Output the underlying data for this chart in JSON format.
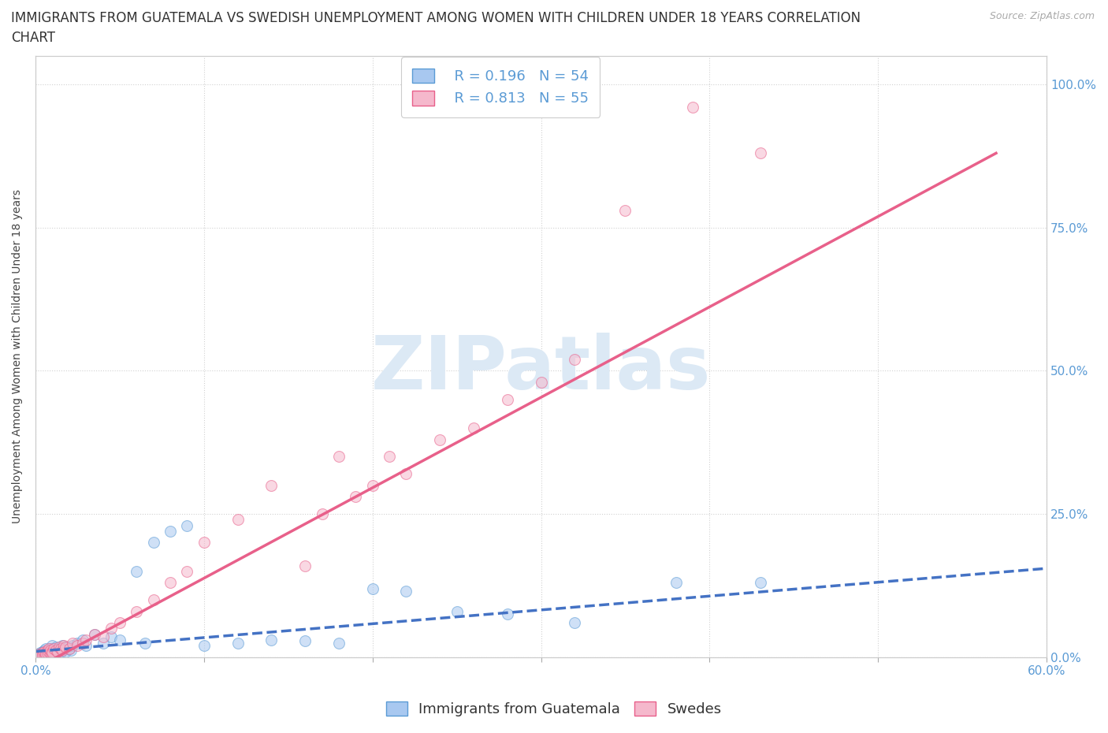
{
  "title_line1": "IMMIGRANTS FROM GUATEMALA VS SWEDISH UNEMPLOYMENT AMONG WOMEN WITH CHILDREN UNDER 18 YEARS CORRELATION",
  "title_line2": "CHART",
  "source": "Source: ZipAtlas.com",
  "ylabel": "Unemployment Among Women with Children Under 18 years",
  "xlim": [
    0.0,
    0.6
  ],
  "ylim": [
    0.0,
    1.05
  ],
  "xticks": [
    0.0,
    0.1,
    0.2,
    0.3,
    0.4,
    0.5,
    0.6
  ],
  "xticklabels": [
    "0.0%",
    "",
    "",
    "",
    "",
    "",
    "60.0%"
  ],
  "yticks": [
    0.0,
    0.25,
    0.5,
    0.75,
    1.0
  ],
  "yticklabels": [
    "0.0%",
    "25.0%",
    "50.0%",
    "75.0%",
    "100.0%"
  ],
  "blue_fill": "#a8c8f0",
  "blue_edge": "#5b9bd5",
  "pink_fill": "#f5b8cc",
  "pink_edge": "#e8608a",
  "blue_line_color": "#4472c4",
  "pink_line_color": "#e8608a",
  "watermark_text": "ZIPatlas",
  "watermark_color": "#dce9f5",
  "legend_R_blue": "R = 0.196",
  "legend_N_blue": "N = 54",
  "legend_R_pink": "R = 0.813",
  "legend_N_pink": "N = 55",
  "legend_label_blue": "Immigrants from Guatemala",
  "legend_label_pink": "Swedes",
  "blue_scatter_x": [
    0.002,
    0.003,
    0.004,
    0.004,
    0.005,
    0.005,
    0.006,
    0.006,
    0.007,
    0.007,
    0.008,
    0.008,
    0.009,
    0.009,
    0.01,
    0.01,
    0.011,
    0.012,
    0.012,
    0.013,
    0.014,
    0.015,
    0.015,
    0.016,
    0.017,
    0.018,
    0.019,
    0.02,
    0.021,
    0.022,
    0.025,
    0.028,
    0.03,
    0.035,
    0.04,
    0.045,
    0.05,
    0.06,
    0.065,
    0.07,
    0.08,
    0.09,
    0.1,
    0.12,
    0.14,
    0.16,
    0.18,
    0.2,
    0.22,
    0.25,
    0.28,
    0.32,
    0.38,
    0.43
  ],
  "blue_scatter_y": [
    0.005,
    0.008,
    0.01,
    0.003,
    0.007,
    0.012,
    0.005,
    0.015,
    0.008,
    0.01,
    0.012,
    0.006,
    0.009,
    0.015,
    0.01,
    0.02,
    0.008,
    0.012,
    0.018,
    0.01,
    0.015,
    0.012,
    0.008,
    0.02,
    0.015,
    0.01,
    0.018,
    0.015,
    0.012,
    0.02,
    0.025,
    0.03,
    0.02,
    0.04,
    0.025,
    0.035,
    0.03,
    0.15,
    0.025,
    0.2,
    0.22,
    0.23,
    0.02,
    0.025,
    0.03,
    0.028,
    0.025,
    0.12,
    0.115,
    0.08,
    0.075,
    0.06,
    0.13,
    0.13
  ],
  "pink_scatter_x": [
    0.002,
    0.003,
    0.004,
    0.004,
    0.005,
    0.005,
    0.006,
    0.006,
    0.007,
    0.007,
    0.008,
    0.008,
    0.009,
    0.009,
    0.01,
    0.01,
    0.011,
    0.012,
    0.013,
    0.014,
    0.015,
    0.016,
    0.017,
    0.018,
    0.02,
    0.022,
    0.025,
    0.028,
    0.03,
    0.035,
    0.04,
    0.045,
    0.05,
    0.06,
    0.07,
    0.08,
    0.09,
    0.1,
    0.12,
    0.14,
    0.16,
    0.17,
    0.18,
    0.19,
    0.2,
    0.21,
    0.22,
    0.24,
    0.26,
    0.28,
    0.3,
    0.32,
    0.35,
    0.39,
    0.43
  ],
  "pink_scatter_y": [
    0.005,
    0.002,
    0.008,
    0.004,
    0.006,
    0.01,
    0.008,
    0.005,
    0.012,
    0.008,
    0.01,
    0.015,
    0.008,
    0.012,
    0.01,
    0.008,
    0.015,
    0.012,
    0.01,
    0.018,
    0.015,
    0.012,
    0.02,
    0.018,
    0.015,
    0.025,
    0.02,
    0.025,
    0.03,
    0.04,
    0.035,
    0.05,
    0.06,
    0.08,
    0.1,
    0.13,
    0.15,
    0.2,
    0.24,
    0.3,
    0.16,
    0.25,
    0.35,
    0.28,
    0.3,
    0.35,
    0.32,
    0.38,
    0.4,
    0.45,
    0.48,
    0.52,
    0.78,
    0.96,
    0.88
  ],
  "blue_line_x0": 0.0,
  "blue_line_x1": 0.6,
  "blue_line_y0": 0.01,
  "blue_line_y1": 0.155,
  "pink_line_x0": 0.0,
  "pink_line_x1": 0.57,
  "pink_line_y0": -0.02,
  "pink_line_y1": 0.88,
  "background_color": "#ffffff",
  "grid_color": "#cccccc",
  "title_fontsize": 12,
  "axis_label_fontsize": 10,
  "tick_fontsize": 11,
  "legend_fontsize": 13,
  "scatter_alpha": 0.55,
  "scatter_size": 100
}
